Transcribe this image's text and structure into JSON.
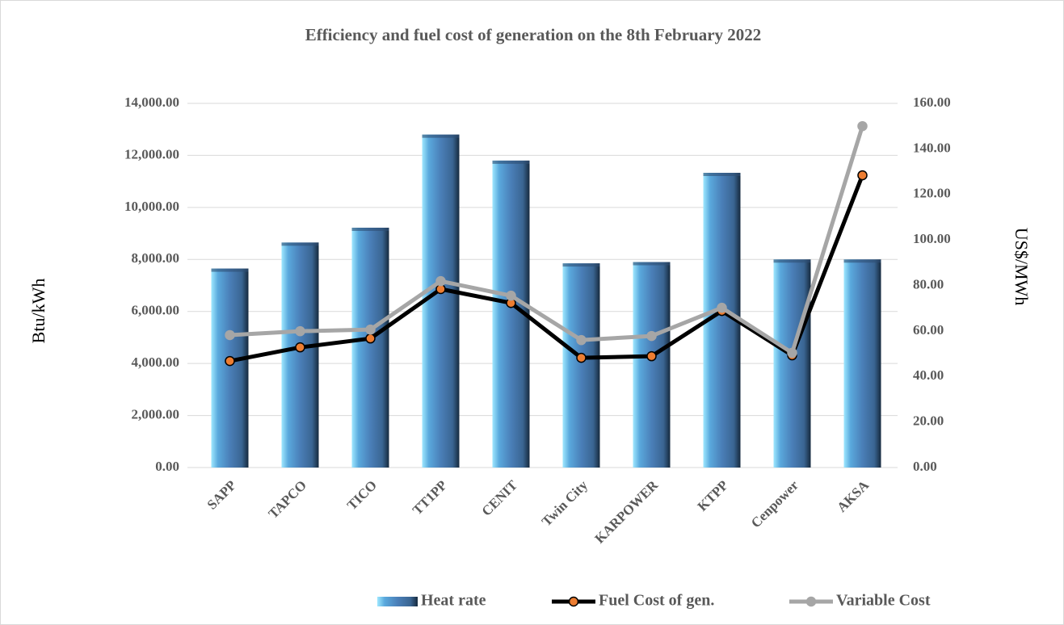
{
  "chart_data": {
    "type": "bar_line",
    "title": "Efficiency and fuel cost of generation on the 8th February 2022",
    "ylabel": "Btu/kWh",
    "y2label": "US$/MWh",
    "categories": [
      "SAPP",
      "TAPCO",
      "TICO",
      "TT1PP",
      "CENIT",
      "Twin City",
      "KARPOWER",
      "KTPP",
      "Cenpower",
      "AKSA"
    ],
    "series": [
      {
        "name": "Heat rate",
        "type": "bar",
        "color": "#4f81bd",
        "values": [
          7650,
          8650,
          9220,
          12800,
          11800,
          7850,
          7900,
          11330,
          8000,
          8000
        ]
      },
      {
        "name": "Fuel Cost of gen.",
        "type": "line",
        "axis": "y2",
        "color": "#000000",
        "marker_color": "#ed7d31",
        "values": [
          46.8,
          52.8,
          56.7,
          78.4,
          72.3,
          48.2,
          48.9,
          68.8,
          49.3,
          128.4
        ]
      },
      {
        "name": "Variable Cost",
        "type": "line",
        "axis": "y2",
        "color": "#a6a6a6",
        "marker_color": "#a6a6a6",
        "values": [
          58.2,
          59.9,
          60.6,
          81.9,
          75.5,
          56.0,
          57.8,
          70.2,
          50.4,
          150.0
        ]
      }
    ],
    "ylim": [
      0,
      14000
    ],
    "yticks": [
      {
        "value": 0,
        "label": "0.00"
      },
      {
        "value": 2000,
        "label": "2,000.00"
      },
      {
        "value": 4000,
        "label": "4,000.00"
      },
      {
        "value": 6000,
        "label": "6,000.00"
      },
      {
        "value": 8000,
        "label": "8,000.00"
      },
      {
        "value": 10000,
        "label": "10,000.00"
      },
      {
        "value": 12000,
        "label": "12,000.00"
      },
      {
        "value": 14000,
        "label": "14,000.00"
      }
    ],
    "y2lim": [
      0,
      160
    ],
    "y2ticks": [
      {
        "value": 0,
        "label": "0.00"
      },
      {
        "value": 20,
        "label": "20.00"
      },
      {
        "value": 40,
        "label": "40.00"
      },
      {
        "value": 60,
        "label": "60.00"
      },
      {
        "value": 80,
        "label": "80.00"
      },
      {
        "value": 100,
        "label": "100.00"
      },
      {
        "value": 120,
        "label": "120.00"
      },
      {
        "value": 140,
        "label": "140.00"
      },
      {
        "value": 160,
        "label": "160.00"
      }
    ],
    "grid": true,
    "legend": "bottom"
  }
}
